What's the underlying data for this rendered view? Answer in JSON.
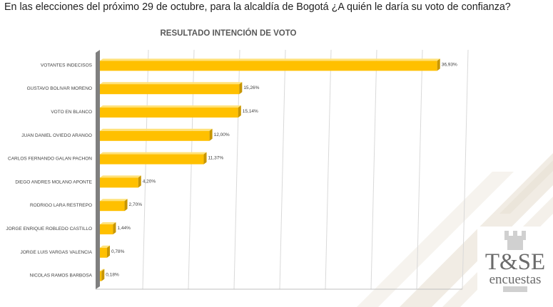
{
  "question": "En las elecciones del próximo 29 de octubre, para la alcaldía de Bogotá ¿A quién le daría su voto de confianza?",
  "brand": {
    "name": "T&SE",
    "subtitle": "encuestas",
    "icon": "rook-icon"
  },
  "colors": {
    "bar": "#FFC000",
    "bar_dark": "#C89600",
    "bar_top": "#FFE27A",
    "grid": "#D9D9D9",
    "text": "#404040"
  },
  "chart_data": {
    "type": "bar",
    "orientation": "horizontal",
    "title": "RESULTADO INTENCIÓN DE VOTO",
    "categories": [
      "VOTANTES INDECISOS",
      "GUSTAVO BOLIVAR MORENO",
      "VOTO EN BLANCO",
      "JUAN DANIEL OVIEDO ARANGO",
      "CARLOS FERNANDO GALAN PACHON",
      "DIEGO ANDRES MOLANO APONTE",
      "RODRIGO LARA RESTREPO",
      "JORGE ENRIQUE ROBLEDO CASTILLO",
      "JORGE LUIS VARGAS VALENCIA",
      "NICOLAS RAMOS BARBOSA"
    ],
    "values": [
      36.93,
      15.26,
      15.14,
      12.0,
      11.37,
      4.2,
      2.7,
      1.44,
      0.78,
      0.18
    ],
    "data_labels": [
      "36,93%",
      "15,26%",
      "15,14%",
      "12,00%",
      "11,37%",
      "4,20%",
      "2,70%",
      "1,44%",
      "0,78%",
      "0,18%"
    ],
    "xlim": [
      0,
      40
    ],
    "grid": true
  }
}
